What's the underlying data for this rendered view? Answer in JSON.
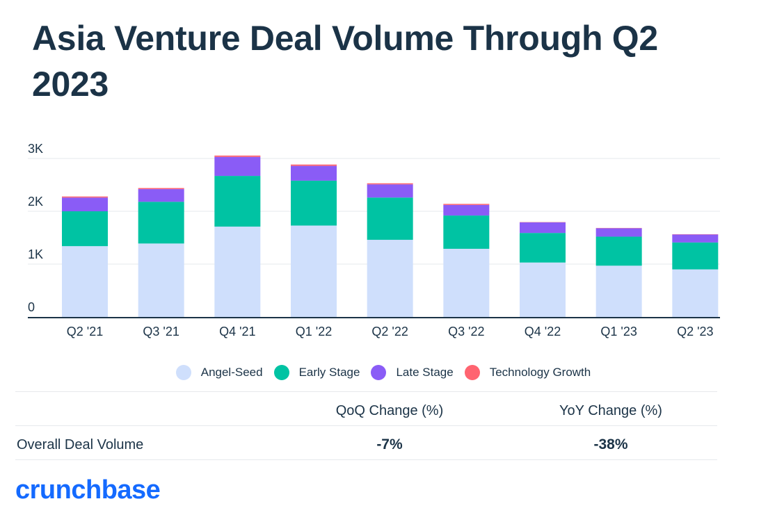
{
  "title": "Asia Venture Deal Volume Through Q2 2023",
  "chart_data": {
    "type": "bar",
    "stacked": true,
    "categories": [
      "Q2 '21",
      "Q3 '21",
      "Q4 '21",
      "Q1 '22",
      "Q2 '22",
      "Q3 '22",
      "Q4 '22",
      "Q1 '23",
      "Q2 '23"
    ],
    "series": [
      {
        "name": "Angel-Seed",
        "color": "#cfdffc",
        "values": [
          1340,
          1390,
          1710,
          1730,
          1460,
          1290,
          1030,
          970,
          900
        ]
      },
      {
        "name": "Early Stage",
        "color": "#00c3a3",
        "values": [
          660,
          790,
          960,
          850,
          800,
          630,
          560,
          550,
          510
        ]
      },
      {
        "name": "Late Stage",
        "color": "#8a5cf6",
        "values": [
          260,
          240,
          360,
          280,
          250,
          200,
          200,
          160,
          150
        ]
      },
      {
        "name": "Technology Growth",
        "color": "#ff6470",
        "values": [
          20,
          20,
          25,
          25,
          20,
          20,
          5,
          5,
          5
        ]
      }
    ],
    "yticks": [
      {
        "value": 0,
        "label": "0"
      },
      {
        "value": 1000,
        "label": "1K"
      },
      {
        "value": 2000,
        "label": "2K"
      },
      {
        "value": 3000,
        "label": "3K"
      }
    ],
    "ylim": [
      0,
      3000
    ],
    "grid": true,
    "legend": "bottom",
    "xlabel": "",
    "ylabel": ""
  },
  "table": {
    "headers": [
      "QoQ Change (%)",
      "YoY Change (%)"
    ],
    "row_label": "Overall Deal Volume",
    "qoq": "-7%",
    "yoy": "-38%"
  },
  "brand": "crunchbase"
}
